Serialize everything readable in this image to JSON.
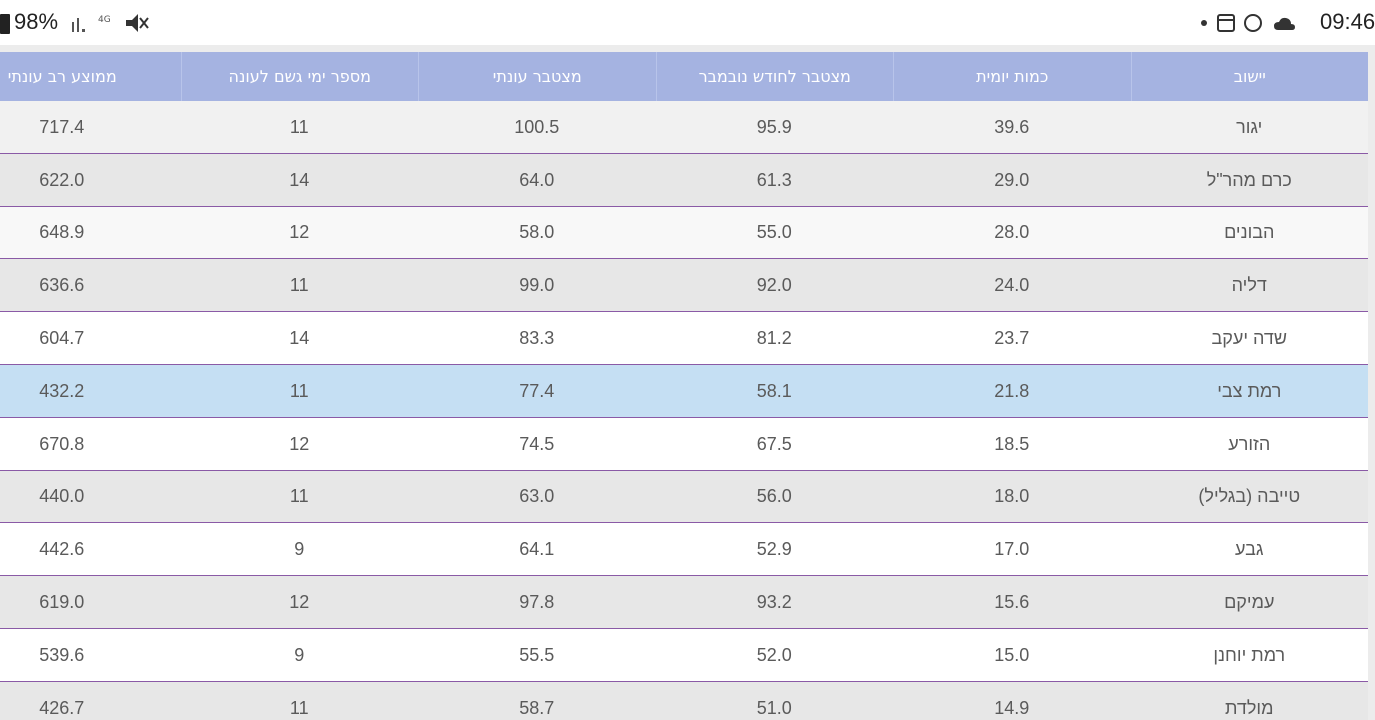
{
  "status_bar": {
    "battery": "98%",
    "time": "09:46"
  },
  "table": {
    "columns": [
      "יישוב",
      "כמות יומית",
      "מצטבר לחודש נובמבר",
      "מצטבר עונתי",
      "מספר ימי גשם לעונה",
      "ממוצע רב עונתי"
    ],
    "rows": [
      [
        "יגור",
        "39.6",
        "95.9",
        "100.5",
        "11",
        "717.4"
      ],
      [
        "כרם מהר\"ל",
        "29.0",
        "61.3",
        "64.0",
        "14",
        "622.0"
      ],
      [
        "הבונים",
        "28.0",
        "55.0",
        "58.0",
        "12",
        "648.9"
      ],
      [
        "דליה",
        "24.0",
        "92.0",
        "99.0",
        "11",
        "636.6"
      ],
      [
        "שדה יעקב",
        "23.7",
        "81.2",
        "83.3",
        "14",
        "604.7"
      ],
      [
        "רמת צבי",
        "21.8",
        "58.1",
        "77.4",
        "11",
        "432.2"
      ],
      [
        "הזורע",
        "18.5",
        "67.5",
        "74.5",
        "12",
        "670.8"
      ],
      [
        "טייבה (בגליל)",
        "18.0",
        "56.0",
        "63.0",
        "11",
        "440.0"
      ],
      [
        "גבע",
        "17.0",
        "52.9",
        "64.1",
        "9",
        "442.6"
      ],
      [
        "עמיקם",
        "15.6",
        "93.2",
        "97.8",
        "12",
        "619.0"
      ],
      [
        "רמת יוחנן",
        "15.0",
        "52.0",
        "55.5",
        "9",
        "539.6"
      ],
      [
        "מולדת",
        "14.9",
        "51.0",
        "58.7",
        "11",
        "426.7"
      ]
    ]
  }
}
